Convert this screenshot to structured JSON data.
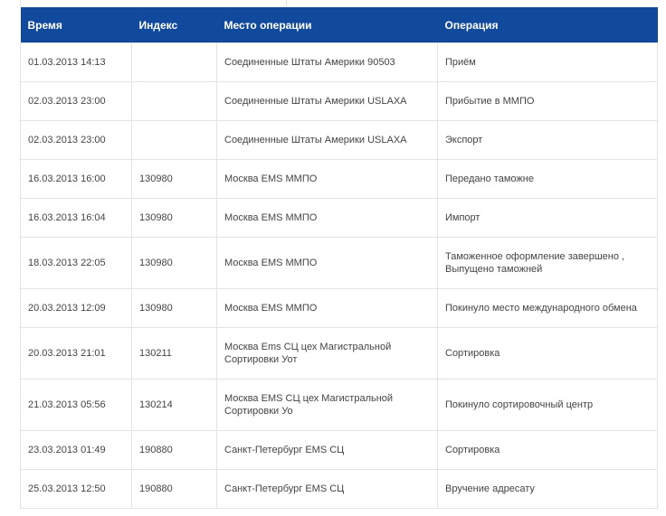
{
  "table": {
    "headers": [
      "Время",
      "Индекс",
      "Место операции",
      "Операция"
    ],
    "rows": [
      {
        "time": "01.03.2013 14:13",
        "index": "",
        "place": "Соединенные Штаты Америки 90503",
        "operation": "Приём"
      },
      {
        "time": "02.03.2013 23:00",
        "index": "",
        "place": "Соединенные Штаты Америки USLAXA",
        "operation": "Прибытие в ММПО"
      },
      {
        "time": "02.03.2013 23:00",
        "index": "",
        "place": "Соединенные Штаты Америки USLAXA",
        "operation": "Экспорт"
      },
      {
        "time": "16.03.2013 16:00",
        "index": "130980",
        "place": "Москва EMS ММПО",
        "operation": "Передано таможне"
      },
      {
        "time": "16.03.2013 16:04",
        "index": "130980",
        "place": "Москва EMS ММПО",
        "operation": "Импорт"
      },
      {
        "time": "18.03.2013 22:05",
        "index": "130980",
        "place": "Москва EMS ММПО",
        "operation": "Таможенное оформление завершено , Выпущено таможней"
      },
      {
        "time": "20.03.2013 12:09",
        "index": "130980",
        "place": "Москва EMS ММПО",
        "operation": "Покинуло место международного обмена"
      },
      {
        "time": "20.03.2013 21:01",
        "index": "130211",
        "place": "Москва Ems СЦ цех Магистральной Сортировки Уот",
        "operation": "Сортировка"
      },
      {
        "time": "21.03.2013 05:56",
        "index": "130214",
        "place": "Москва EMS СЦ цех Магистральной Сортировки Уо",
        "operation": "Покинуло сортировочный центр"
      },
      {
        "time": "23.03.2013 01:49",
        "index": "190880",
        "place": "Санкт-Петербург EMS СЦ",
        "operation": "Сортировка"
      },
      {
        "time": "25.03.2013 12:50",
        "index": "190880",
        "place": "Санкт-Петербург EMS СЦ",
        "operation": "Вручение адресату"
      }
    ]
  },
  "colors": {
    "header_bg": "#114a9c",
    "header_text": "#ffffff",
    "border": "#e3e3e3"
  }
}
